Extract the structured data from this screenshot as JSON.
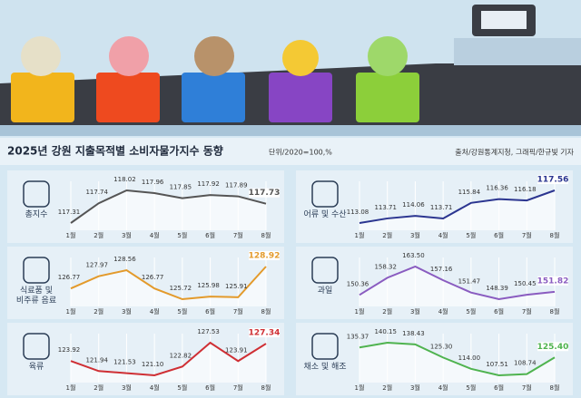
{
  "title": "2025년 강원 지출목적별 소비자물가지수 동향",
  "unit": "단위/2020=100,%",
  "source": "출처/강원통계지청, 그래픽/한규빛 기자",
  "chart_data": [
    {
      "type": "line",
      "title": "총지수",
      "categories": [
        "1월",
        "2월",
        "3월",
        "4월",
        "5월",
        "6월",
        "7월",
        "8월"
      ],
      "values": [
        117.31,
        117.74,
        118.02,
        117.96,
        117.85,
        117.92,
        117.89,
        117.73
      ],
      "value_labels": [
        "117.31",
        "117.74",
        "118.02",
        "117.96",
        "117.85",
        "117.92",
        "117.89",
        "117.73"
      ],
      "color": "#555555"
    },
    {
      "type": "line",
      "title": "식료품 및\n비주류 음료",
      "categories": [
        "1월",
        "2월",
        "3월",
        "4월",
        "5월",
        "6월",
        "7월",
        "8월"
      ],
      "values": [
        126.77,
        127.97,
        128.56,
        126.77,
        125.72,
        125.98,
        125.91,
        128.92
      ],
      "value_labels": [
        "126.77",
        "127.97",
        "128.56",
        "126.77",
        "125.72",
        "125.98",
        "125.91",
        "128.92"
      ],
      "color": "#e39a2b"
    },
    {
      "type": "line",
      "title": "육류",
      "categories": [
        "1월",
        "2월",
        "3월",
        "4월",
        "5월",
        "6월",
        "7월",
        "8월"
      ],
      "values": [
        123.92,
        121.94,
        121.53,
        121.1,
        122.82,
        127.53,
        123.91,
        127.34
      ],
      "value_labels": [
        "123.92",
        "121.94",
        "121.53",
        "121.10",
        "122.82",
        "127.53",
        "123.91",
        "127.34"
      ],
      "color": "#cf2f34"
    },
    {
      "type": "line",
      "title": "어류 및 수산",
      "categories": [
        "1월",
        "2월",
        "3월",
        "4월",
        "5월",
        "6월",
        "7월",
        "8월"
      ],
      "values": [
        113.08,
        113.71,
        114.06,
        113.71,
        115.84,
        116.36,
        116.18,
        117.56
      ],
      "value_labels": [
        "113.08",
        "113.71",
        "114.06",
        "113.71",
        "115.84",
        "116.36",
        "116.18",
        "117.56"
      ],
      "color": "#2b3590"
    },
    {
      "type": "line",
      "title": "과일",
      "categories": [
        "1월",
        "2월",
        "3월",
        "4월",
        "5월",
        "6월",
        "7월",
        "8월"
      ],
      "values": [
        150.36,
        158.32,
        163.5,
        157.16,
        151.47,
        148.39,
        150.45,
        151.82
      ],
      "value_labels": [
        "150.36",
        "158.32",
        "163.50",
        "157.16",
        "151.47",
        "148.39",
        "150.45",
        "151.82"
      ],
      "color": "#8a5cc0"
    },
    {
      "type": "line",
      "title": "채소 및 해조",
      "categories": [
        "1월",
        "2월",
        "3월",
        "4월",
        "5월",
        "6월",
        "7월",
        "8월"
      ],
      "values": [
        135.37,
        140.15,
        138.43,
        125.3,
        114,
        107.51,
        108.74,
        125.4
      ],
      "value_labels": [
        "135.37",
        "140.15",
        "138.43",
        "125.30",
        "114.00",
        "107.51",
        "108.74",
        "125.40"
      ],
      "color": "#4fb34f"
    }
  ]
}
